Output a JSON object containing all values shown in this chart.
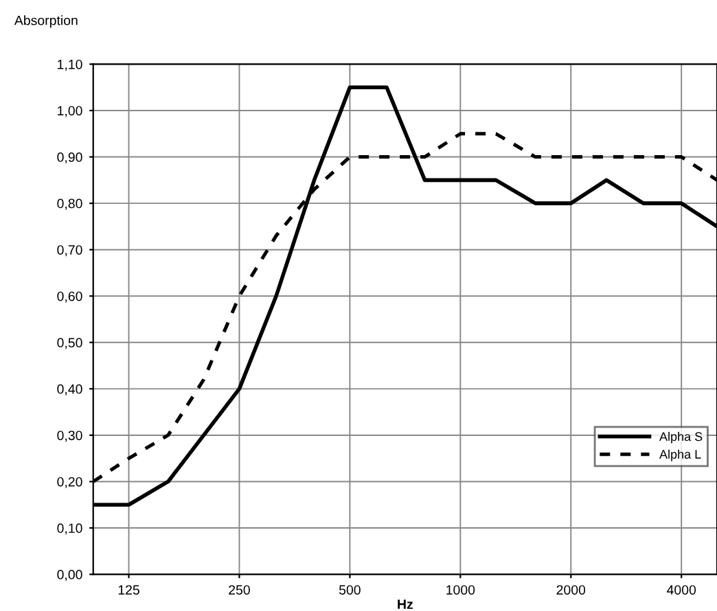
{
  "chart_data": {
    "type": "line",
    "xlabel": "Hz",
    "ylabel": "Absorption",
    "log": "x",
    "x": [
      100,
      125,
      160,
      200,
      250,
      315,
      400,
      500,
      630,
      800,
      1000,
      1250,
      1600,
      2000,
      2500,
      3150,
      4000,
      5000
    ],
    "series": [
      {
        "name": "Alpha S",
        "color": "#000000",
        "line_style": "solid",
        "values": [
          0.15,
          0.15,
          0.2,
          0.3,
          0.4,
          0.6,
          0.85,
          1.05,
          1.05,
          0.85,
          0.85,
          0.85,
          0.8,
          0.8,
          0.85,
          0.8,
          0.8,
          0.75
        ]
      },
      {
        "name": "Alpha L",
        "color": "#000000",
        "line_style": "dashed",
        "values": [
          0.2,
          0.25,
          0.3,
          0.42,
          0.6,
          0.73,
          0.83,
          0.9,
          0.9,
          0.9,
          0.95,
          0.95,
          0.9,
          0.9,
          0.9,
          0.9,
          0.9,
          0.85
        ]
      }
    ],
    "xlim": [
      100,
      5000
    ],
    "xticks": [
      125,
      250,
      500,
      1000,
      2000,
      4000
    ],
    "ylim": [
      0,
      1.1
    ],
    "yticks": [
      {
        "value": 0,
        "label": "0,00"
      },
      {
        "value": 0.1,
        "label": "0,10"
      },
      {
        "value": 0.2,
        "label": "0,20"
      },
      {
        "value": 0.3,
        "label": "0,30"
      },
      {
        "value": 0.4,
        "label": "0,40"
      },
      {
        "value": 0.5,
        "label": "0,50"
      },
      {
        "value": 0.6,
        "label": "0,60"
      },
      {
        "value": 0.7,
        "label": "0,70"
      },
      {
        "value": 0.8,
        "label": "0,80"
      },
      {
        "value": 0.9,
        "label": "0,90"
      },
      {
        "value": 1.0,
        "label": "1,00"
      },
      {
        "value": 1.1,
        "label": "1,10"
      }
    ],
    "grid": true,
    "legend": "right",
    "marker": "none"
  }
}
